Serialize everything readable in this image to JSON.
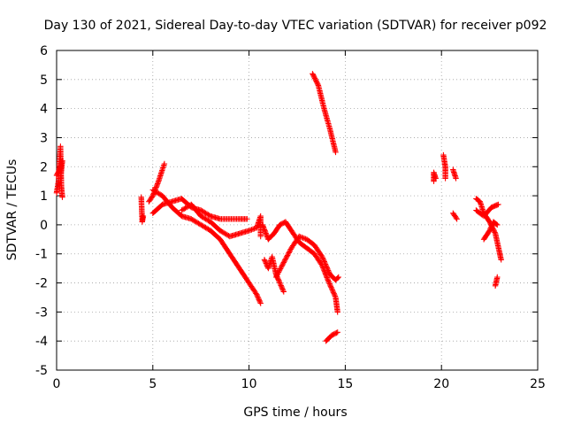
{
  "chart_data": {
    "type": "scatter",
    "title": "Day 130 of 2021, Sidereal Day-to-day VTEC variation (SDTVAR) for receiver p092",
    "xlabel": "GPS time / hours",
    "ylabel": "SDTVAR / TECUs",
    "xlim": [
      0,
      25
    ],
    "ylim": [
      -5,
      6
    ],
    "xticks": [
      0,
      5,
      10,
      15,
      20,
      25
    ],
    "yticks": [
      -5,
      -4,
      -3,
      -2,
      -1,
      0,
      1,
      2,
      3,
      4,
      5,
      6
    ],
    "grid": true,
    "marker": "+",
    "color": "#ff0000",
    "segments": [
      {
        "points": [
          [
            0.0,
            1.1
          ],
          [
            0.1,
            1.5
          ],
          [
            0.2,
            2.7
          ],
          [
            0.25,
            1.3
          ],
          [
            0.3,
            0.95
          ]
        ]
      },
      {
        "points": [
          [
            0.0,
            1.7
          ],
          [
            0.15,
            1.9
          ],
          [
            0.3,
            2.2
          ],
          [
            0.2,
            1.6
          ]
        ]
      },
      {
        "points": [
          [
            4.4,
            0.95
          ],
          [
            4.45,
            0.1
          ],
          [
            4.5,
            0.3
          ]
        ]
      },
      {
        "points": [
          [
            4.8,
            0.8
          ],
          [
            5.0,
            1.0
          ],
          [
            5.3,
            1.5
          ],
          [
            5.6,
            2.1
          ]
        ]
      },
      {
        "points": [
          [
            5.0,
            0.4
          ],
          [
            5.5,
            0.7
          ],
          [
            6.0,
            0.8
          ],
          [
            6.5,
            0.9
          ],
          [
            7.0,
            0.6
          ],
          [
            7.5,
            0.5
          ],
          [
            8.0,
            0.3
          ],
          [
            8.5,
            0.2
          ],
          [
            9.0,
            0.2
          ],
          [
            9.5,
            0.2
          ],
          [
            9.9,
            0.2
          ]
        ]
      },
      {
        "points": [
          [
            5.0,
            1.2
          ],
          [
            5.5,
            1.0
          ],
          [
            6.0,
            0.6
          ],
          [
            6.5,
            0.3
          ],
          [
            7.0,
            0.2
          ],
          [
            7.5,
            0.0
          ],
          [
            8.0,
            -0.2
          ],
          [
            8.5,
            -0.5
          ],
          [
            9.0,
            -1.0
          ],
          [
            9.5,
            -1.5
          ],
          [
            10.0,
            -2.0
          ],
          [
            10.4,
            -2.4
          ],
          [
            10.6,
            -2.7
          ]
        ]
      },
      {
        "points": [
          [
            6.5,
            0.5
          ],
          [
            7.0,
            0.7
          ],
          [
            7.5,
            0.3
          ],
          [
            8.0,
            0.1
          ],
          [
            8.5,
            -0.2
          ],
          [
            9.0,
            -0.4
          ],
          [
            9.5,
            -0.3
          ],
          [
            10.0,
            -0.2
          ],
          [
            10.4,
            -0.1
          ],
          [
            10.6,
            0.3
          ],
          [
            10.6,
            -0.4
          ]
        ]
      },
      {
        "points": [
          [
            10.8,
            -1.2
          ],
          [
            11.0,
            -1.5
          ],
          [
            11.2,
            -1.1
          ],
          [
            11.4,
            -1.7
          ],
          [
            11.6,
            -2.0
          ],
          [
            11.8,
            -2.3
          ]
        ]
      },
      {
        "points": [
          [
            10.7,
            0.0
          ],
          [
            11.0,
            -0.5
          ],
          [
            11.3,
            -0.3
          ],
          [
            11.6,
            0.0
          ],
          [
            11.9,
            0.1
          ],
          [
            12.2,
            -0.2
          ],
          [
            12.6,
            -0.6
          ],
          [
            13.0,
            -0.8
          ],
          [
            13.4,
            -1.0
          ],
          [
            13.8,
            -1.4
          ],
          [
            14.1,
            -1.9
          ],
          [
            14.3,
            -2.2
          ],
          [
            14.5,
            -2.5
          ],
          [
            14.6,
            -3.0
          ]
        ]
      },
      {
        "points": [
          [
            11.4,
            -1.8
          ],
          [
            11.8,
            -1.3
          ],
          [
            12.2,
            -0.8
          ],
          [
            12.6,
            -0.4
          ],
          [
            13.0,
            -0.5
          ],
          [
            13.4,
            -0.7
          ],
          [
            13.8,
            -1.1
          ],
          [
            14.2,
            -1.7
          ],
          [
            14.5,
            -1.9
          ],
          [
            14.65,
            -1.8
          ]
        ]
      },
      {
        "points": [
          [
            13.3,
            5.2
          ],
          [
            13.6,
            4.8
          ],
          [
            13.9,
            4.0
          ],
          [
            14.2,
            3.3
          ],
          [
            14.5,
            2.5
          ]
        ]
      },
      {
        "points": [
          [
            14.0,
            -4.0
          ],
          [
            14.3,
            -3.8
          ],
          [
            14.6,
            -3.7
          ]
        ]
      },
      {
        "points": [
          [
            19.6,
            1.5
          ],
          [
            19.6,
            1.8
          ],
          [
            19.7,
            1.6
          ]
        ]
      },
      {
        "points": [
          [
            20.1,
            2.4
          ],
          [
            20.2,
            2.0
          ],
          [
            20.2,
            1.6
          ]
        ]
      },
      {
        "points": [
          [
            20.6,
            1.9
          ],
          [
            20.75,
            1.6
          ]
        ]
      },
      {
        "points": [
          [
            20.6,
            0.4
          ],
          [
            20.8,
            0.2
          ]
        ]
      },
      {
        "points": [
          [
            21.8,
            0.9
          ],
          [
            22.0,
            0.8
          ],
          [
            22.2,
            0.4
          ],
          [
            22.5,
            0.1
          ],
          [
            22.8,
            -0.3
          ],
          [
            23.0,
            -0.9
          ],
          [
            23.1,
            -1.2
          ]
        ]
      },
      {
        "points": [
          [
            21.8,
            0.5
          ],
          [
            22.2,
            0.3
          ],
          [
            22.6,
            0.6
          ],
          [
            22.95,
            0.7
          ]
        ]
      },
      {
        "points": [
          [
            22.2,
            -0.5
          ],
          [
            22.5,
            -0.2
          ],
          [
            22.7,
            0.1
          ],
          [
            22.9,
            0.0
          ]
        ]
      },
      {
        "points": [
          [
            22.8,
            -2.1
          ],
          [
            22.9,
            -1.8
          ]
        ]
      }
    ]
  }
}
